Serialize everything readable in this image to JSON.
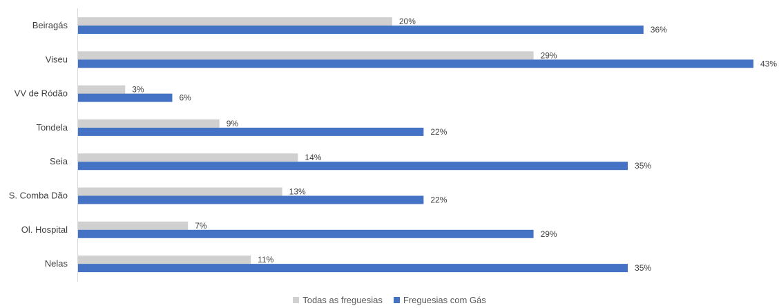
{
  "chart_data": {
    "type": "bar",
    "orientation": "horizontal",
    "categories": [
      "Beiragás",
      "Viseu",
      "VV de Ródão",
      "Tondela",
      "Seia",
      "S. Comba Dão",
      "Ol. Hospital",
      "Nelas"
    ],
    "series": [
      {
        "name": "Todas as freguesias",
        "color": "#d0d0d0",
        "values": [
          20,
          29,
          3,
          9,
          14,
          13,
          7,
          11
        ],
        "labels": [
          "20%",
          "29%",
          "3%",
          "9%",
          "14%",
          "13%",
          "7%",
          "11%"
        ]
      },
      {
        "name": "Freguesias com Gás",
        "color": "#4472c4",
        "values": [
          36,
          43,
          6,
          22,
          35,
          22,
          29,
          35
        ],
        "labels": [
          "36%",
          "43%",
          "6%",
          "22%",
          "35%",
          "22%",
          "29%",
          "35%"
        ]
      }
    ],
    "xlim": [
      0,
      43
    ],
    "grid": false,
    "legend_position": "bottom"
  }
}
